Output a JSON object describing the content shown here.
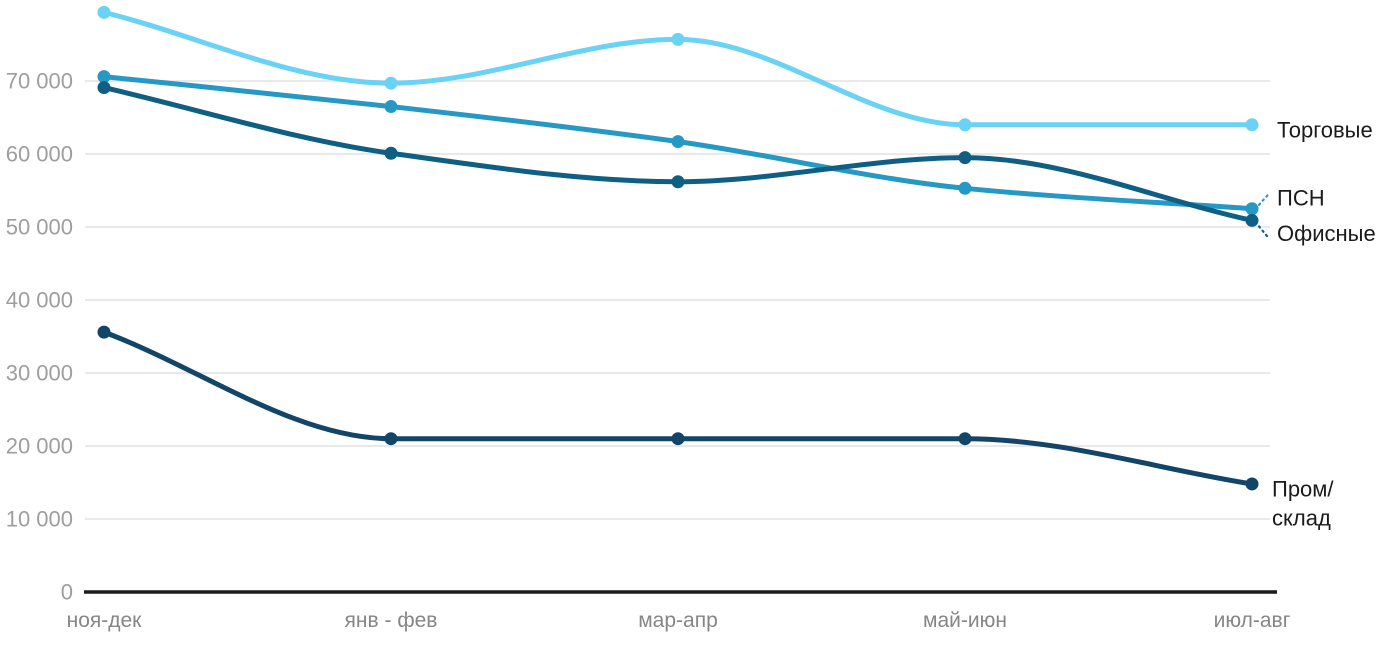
{
  "chart_data": {
    "type": "line",
    "title": "",
    "xlabel": "",
    "ylabel": "",
    "categories": [
      "ноя-дек",
      "янв - фев",
      "мар-апр",
      "май-июн",
      "июл-авг"
    ],
    "series": [
      {
        "name": "Торговые",
        "color": "#69d2f5",
        "values": [
          79400,
          69700,
          75700,
          64000,
          64000
        ],
        "label_lines": [
          "Торговые"
        ]
      },
      {
        "name": "ПСН",
        "color": "#2598c4",
        "values": [
          70600,
          66500,
          61700,
          55300,
          52500
        ],
        "label_lines": [
          "ПСН"
        ]
      },
      {
        "name": "Офисные",
        "color": "#0e5f83",
        "values": [
          69100,
          60100,
          56200,
          59500,
          50900
        ],
        "label_lines": [
          "Офисные"
        ]
      },
      {
        "name": "Пром/склад",
        "color": "#134569",
        "values": [
          35600,
          21000,
          21000,
          21000,
          14800
        ],
        "label_lines": [
          "Пром/",
          "склад"
        ]
      }
    ],
    "y_ticks": [
      {
        "value": 0,
        "label": "0"
      },
      {
        "value": 10000,
        "label": "10 000"
      },
      {
        "value": 20000,
        "label": "20 000"
      },
      {
        "value": 30000,
        "label": "30 000"
      },
      {
        "value": 40000,
        "label": "40 000"
      },
      {
        "value": 50000,
        "label": "50 000"
      },
      {
        "value": 60000,
        "label": "60 000"
      },
      {
        "value": 70000,
        "label": "70 000"
      }
    ],
    "ylim": [
      0,
      80000
    ],
    "grid": true,
    "curve": "monotone",
    "legend_position": "right-of-line-ends",
    "colors": {
      "background": "#ffffff",
      "grid": "#e9e9e9",
      "axis": "#1a1a1a",
      "y_tick_label": "#9e9e9e",
      "x_tick_label": "#868686",
      "series_label": "#1b1b1b"
    }
  }
}
